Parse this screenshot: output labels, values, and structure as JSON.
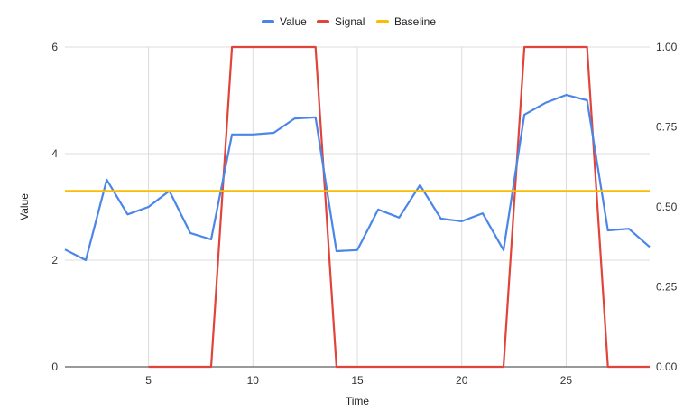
{
  "chart_data": {
    "type": "line",
    "title": "",
    "xlabel": "Time",
    "ylabel": "Value",
    "y2label": "",
    "xlim": [
      1,
      29
    ],
    "ylim": [
      0,
      6
    ],
    "y2lim": [
      0,
      1
    ],
    "x_ticks": [
      5,
      10,
      15,
      20,
      25
    ],
    "y_ticks": [
      0,
      2,
      4,
      6
    ],
    "y2_ticks": [
      "0.00",
      "0.25",
      "0.50",
      "0.75",
      "1.00"
    ],
    "grid": true,
    "legend_position": "top",
    "series": [
      {
        "name": "Value",
        "axis": "left",
        "color": "#4a86e8",
        "x": [
          1,
          2,
          3,
          4,
          5,
          6,
          7,
          8,
          9,
          10,
          11,
          12,
          13,
          14,
          15,
          16,
          17,
          18,
          19,
          20,
          21,
          22,
          23,
          24,
          25,
          26,
          27,
          28,
          29
        ],
        "values": [
          2.2,
          2.0,
          3.51,
          2.86,
          3.0,
          3.3,
          2.51,
          2.39,
          4.36,
          4.36,
          4.39,
          4.66,
          4.68,
          2.17,
          2.19,
          2.95,
          2.8,
          3.41,
          2.78,
          2.73,
          2.88,
          2.19,
          4.73,
          4.95,
          5.1,
          5.0,
          2.56,
          2.59,
          2.25
        ]
      },
      {
        "name": "Signal",
        "axis": "right",
        "color": "#e0443a",
        "x": [
          5,
          6,
          7,
          8,
          9,
          10,
          11,
          12,
          13,
          14,
          15,
          16,
          17,
          18,
          19,
          20,
          21,
          22,
          23,
          24,
          25,
          26,
          27,
          28,
          29
        ],
        "values": [
          0,
          0,
          0,
          0,
          1,
          1,
          1,
          1,
          1,
          0,
          0,
          0,
          0,
          0,
          0,
          0,
          0,
          0,
          1,
          1,
          1,
          1,
          0,
          0,
          0
        ]
      },
      {
        "name": "Baseline",
        "axis": "left",
        "color": "#fbbc04",
        "x": [
          1,
          29
        ],
        "values": [
          3.3,
          3.3
        ]
      }
    ]
  },
  "legend": {
    "items": [
      {
        "label": "Value",
        "color": "#4a86e8"
      },
      {
        "label": "Signal",
        "color": "#e0443a"
      },
      {
        "label": "Baseline",
        "color": "#fbbc04"
      }
    ]
  },
  "axes": {
    "x_title": "Time",
    "y_title": "Value"
  }
}
